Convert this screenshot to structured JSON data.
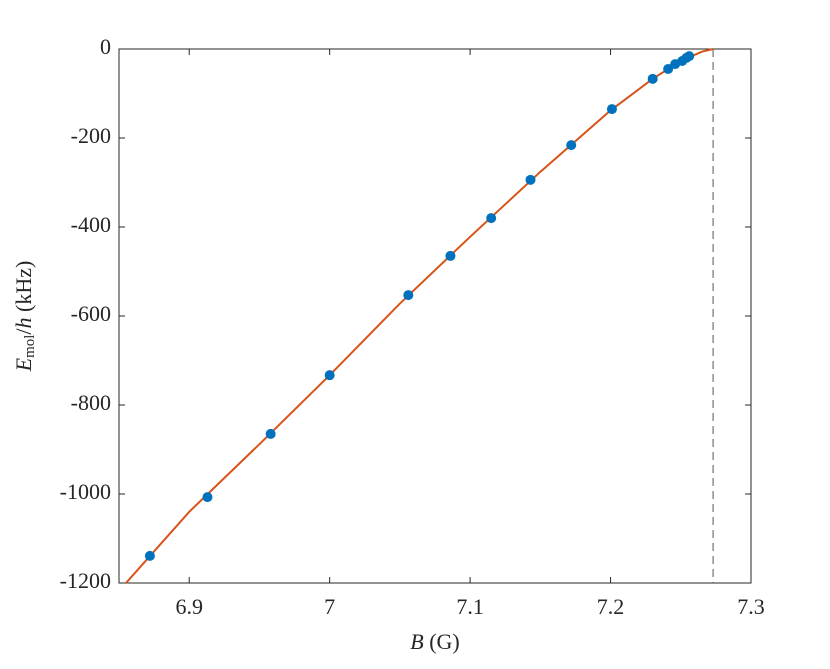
{
  "chart_data": {
    "type": "line",
    "xlabel": [
      "B",
      " (G)"
    ],
    "ylabel": [
      "E",
      "mol",
      "/",
      "h",
      " (kHz)"
    ],
    "xlim": [
      6.85,
      7.3
    ],
    "xticks": [
      6.9,
      7,
      7.1,
      7.2,
      7.3
    ],
    "ylim": [
      -1200,
      0
    ],
    "yticks": [
      -1200,
      -1000,
      -800,
      -600,
      -400,
      -200,
      0
    ],
    "vline": 7.273,
    "series": [
      {
        "type": "line",
        "color": "#d95319",
        "x": [
          6.855,
          6.9,
          6.95,
          7.0,
          7.05,
          7.1,
          7.15,
          7.2,
          7.23,
          7.25,
          7.265,
          7.273
        ],
        "values": [
          -1200,
          -1040,
          -888,
          -733,
          -572,
          -422,
          -276,
          -138,
          -67,
          -27,
          -6,
          0
        ]
      },
      {
        "type": "scatter",
        "color": "#0072bd",
        "x": [
          6.872,
          6.913,
          6.958,
          7.0,
          7.056,
          7.086,
          7.115,
          7.143,
          7.172,
          7.201,
          7.23,
          7.241,
          7.246,
          7.251,
          7.254,
          7.256
        ],
        "values": [
          -1139,
          -1007,
          -865,
          -733,
          -553,
          -465,
          -380,
          -294,
          -216,
          -135,
          -67,
          -45,
          -34,
          -27,
          -20,
          -16
        ]
      }
    ]
  }
}
